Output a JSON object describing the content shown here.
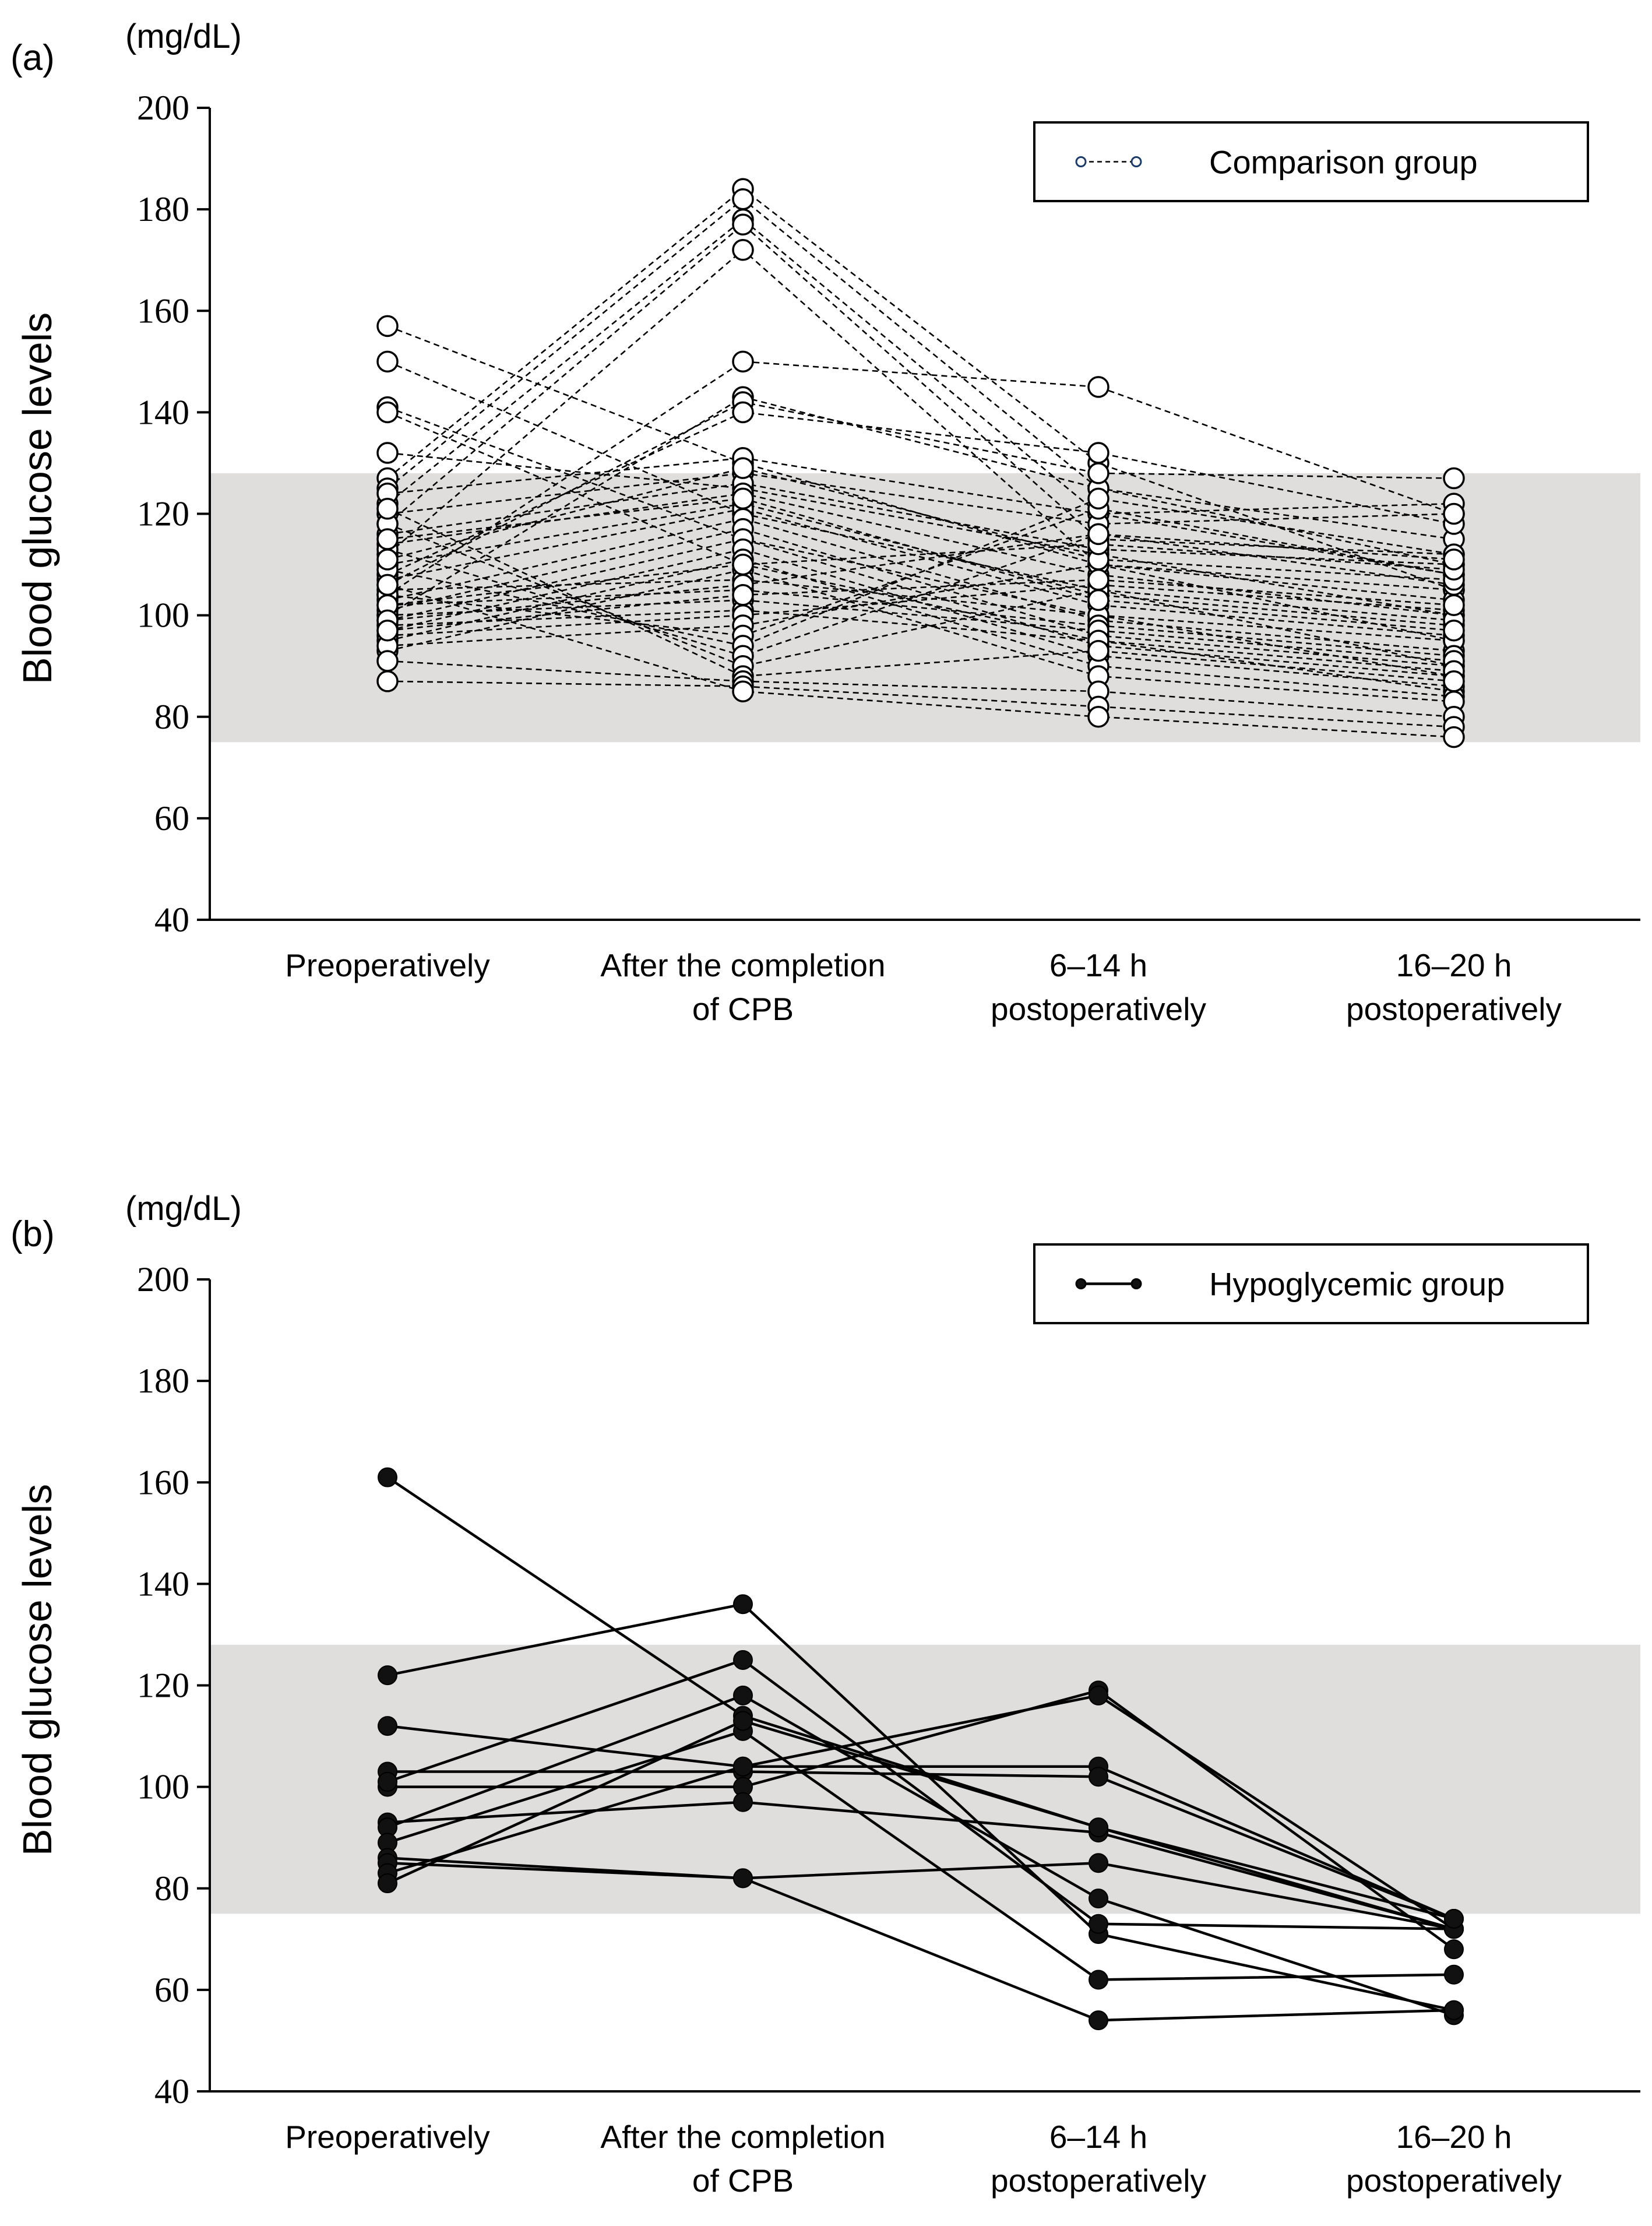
{
  "chart_data": [
    {
      "panel": "(a)",
      "type": "line",
      "unit": "(mg/dL)",
      "ylabel": "Blood glucose levels",
      "xlabel": "",
      "ylim": [
        40,
        200
      ],
      "yticks": [
        "200",
        "180",
        "160",
        "140",
        "120",
        "100",
        "80",
        "60",
        "40"
      ],
      "categories": [
        [
          "Preoperatively"
        ],
        [
          "After the completion",
          "of CPB"
        ],
        [
          "6–14 h",
          "postoperatively"
        ],
        [
          "16–20 h",
          "postoperatively"
        ]
      ],
      "reference_band": [
        75,
        128
      ],
      "legend": {
        "label": "Comparison group",
        "position": "top-right"
      },
      "marker": "open-circle",
      "line_style": "dashed",
      "series": [
        {
          "values": [
            157,
            130,
            110,
            95
          ]
        },
        {
          "values": [
            150,
            120,
            105,
            90
          ]
        },
        {
          "values": [
            141,
            115,
            100,
            88
          ]
        },
        {
          "values": [
            140,
            110,
            95,
            85
          ]
        },
        {
          "values": [
            132,
            125,
            112,
            100
          ]
        },
        {
          "values": [
            127,
            184,
            130,
            105
          ]
        },
        {
          "values": [
            125,
            182,
            125,
            110
          ]
        },
        {
          "values": [
            122,
            178,
            120,
            108
          ]
        },
        {
          "values": [
            118,
            177,
            115,
            112
          ]
        },
        {
          "values": [
            112,
            172,
            110,
            105
          ]
        },
        {
          "values": [
            104,
            150,
            145,
            120
          ]
        },
        {
          "values": [
            100,
            143,
            125,
            115
          ]
        },
        {
          "values": [
            106,
            142,
            128,
            127
          ]
        },
        {
          "values": [
            108,
            140,
            132,
            118
          ]
        },
        {
          "values": [
            124,
            131,
            120,
            122
          ]
        },
        {
          "values": [
            120,
            128,
            118,
            120
          ]
        },
        {
          "values": [
            116,
            126,
            113,
            110
          ]
        },
        {
          "values": [
            114,
            124,
            108,
            100
          ]
        },
        {
          "values": [
            110,
            122,
            104,
            98
          ]
        },
        {
          "values": [
            107,
            121,
            102,
            96
          ]
        },
        {
          "values": [
            103,
            119,
            99,
            93
          ]
        },
        {
          "values": [
            101,
            117,
            96,
            90
          ]
        },
        {
          "values": [
            99,
            115,
            94,
            88
          ]
        },
        {
          "values": [
            97,
            113,
            92,
            86
          ]
        },
        {
          "values": [
            95,
            111,
            90,
            84
          ]
        },
        {
          "values": [
            93,
            109,
            88,
            83
          ]
        },
        {
          "values": [
            105,
            107,
            100,
            95
          ]
        },
        {
          "values": [
            102,
            105,
            98,
            92
          ]
        },
        {
          "values": [
            100,
            103,
            97,
            91
          ]
        },
        {
          "values": [
            98,
            101,
            95,
            89
          ]
        },
        {
          "values": [
            96,
            100,
            106,
            101
          ]
        },
        {
          "values": [
            94,
            98,
            110,
            103
          ]
        },
        {
          "values": [
            104,
            96,
            121,
            108
          ]
        },
        {
          "values": [
            109,
            94,
            123,
            112
          ]
        },
        {
          "values": [
            113,
            92,
            116,
            106
          ]
        },
        {
          "values": [
            118,
            90,
            105,
            99
          ]
        },
        {
          "values": [
            121,
            88,
            93,
            87
          ]
        },
        {
          "values": [
            91,
            87,
            85,
            80
          ]
        },
        {
          "values": [
            87,
            86,
            82,
            78
          ]
        },
        {
          "values": [
            106,
            85,
            80,
            76
          ]
        },
        {
          "values": [
            111,
            129,
            111,
            107
          ]
        },
        {
          "values": [
            115,
            123,
            103,
            97
          ]
        },
        {
          "values": [
            102,
            110,
            114,
            109
          ]
        },
        {
          "values": [
            99,
            106,
            116,
            111
          ]
        },
        {
          "values": [
            97,
            104,
            107,
            102
          ]
        }
      ]
    },
    {
      "panel": "(b)",
      "type": "line",
      "unit": "(mg/dL)",
      "ylabel": "Blood glucose levels",
      "xlabel": "",
      "ylim": [
        40,
        200
      ],
      "yticks": [
        "200",
        "180",
        "160",
        "140",
        "120",
        "100",
        "80",
        "60",
        "40"
      ],
      "categories": [
        [
          "Preoperatively"
        ],
        [
          "After the completion",
          "of CPB"
        ],
        [
          "6–14 h",
          "postoperatively"
        ],
        [
          "16–20 h",
          "postoperatively"
        ]
      ],
      "reference_band": [
        75,
        128
      ],
      "legend": {
        "label": "Hypoglycemic group",
        "position": "top-right"
      },
      "marker": "filled-circle",
      "line_style": "solid",
      "series": [
        {
          "values": [
            161,
            114,
            92,
            72
          ]
        },
        {
          "values": [
            122,
            136,
            71,
            56
          ]
        },
        {
          "values": [
            112,
            104,
            104,
            74
          ]
        },
        {
          "values": [
            103,
            103,
            102,
            74
          ]
        },
        {
          "values": [
            100,
            100,
            119,
            68
          ]
        },
        {
          "values": [
            101,
            125,
            73,
            72
          ]
        },
        {
          "values": [
            93,
            97,
            91,
            72
          ]
        },
        {
          "values": [
            92,
            118,
            78,
            55
          ]
        },
        {
          "values": [
            89,
            111,
            62,
            63
          ]
        },
        {
          "values": [
            86,
            82,
            54,
            56
          ]
        },
        {
          "values": [
            85,
            82,
            85,
            72
          ]
        },
        {
          "values": [
            83,
            104,
            118,
            72
          ]
        },
        {
          "values": [
            81,
            113,
            92,
            74
          ]
        }
      ]
    }
  ]
}
